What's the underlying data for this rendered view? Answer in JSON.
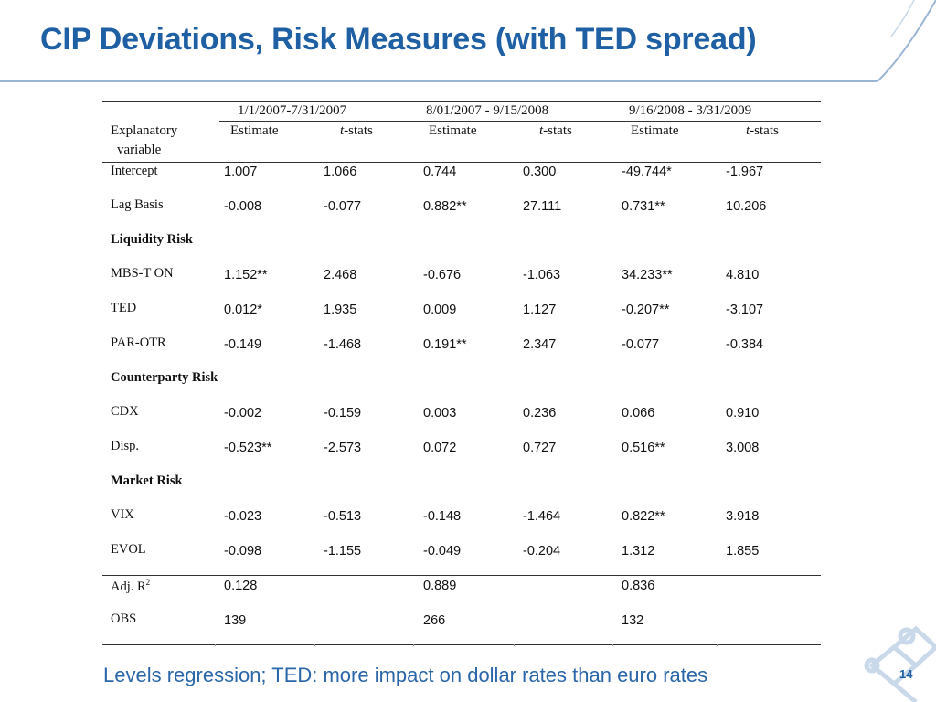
{
  "header": {
    "title": "CIP Deviations, Risk Measures (with TED spread)"
  },
  "table": {
    "periods": [
      "1/1/2007-7/31/2007",
      "8/01/2007 - 9/15/2008",
      "9/16/2008 - 3/31/2009"
    ],
    "col_headers": {
      "explanatory_line1": "Explanatory",
      "explanatory_line2": "variable",
      "estimate": "Estimate",
      "tstats_t": "t",
      "tstats_rest": "-stats"
    },
    "rows": [
      {
        "label": "Intercept",
        "values": [
          "1.007",
          "1.066",
          "0.744",
          "0.300",
          "-49.744*",
          "-1.967"
        ]
      },
      {
        "label": "Lag Basis",
        "values": [
          "-0.008",
          "-0.077",
          "0.882**",
          "27.111",
          "0.731**",
          "10.206"
        ]
      },
      {
        "section": "Liquidity Risk"
      },
      {
        "label": "MBS-T ON",
        "values": [
          "1.152**",
          "2.468",
          "-0.676",
          "-1.063",
          "34.233**",
          "4.810"
        ]
      },
      {
        "label": "TED",
        "values": [
          "0.012*",
          "1.935",
          "0.009",
          "1.127",
          "-0.207**",
          "-3.107"
        ]
      },
      {
        "label": "PAR-OTR",
        "values": [
          "-0.149",
          "-1.468",
          "0.191**",
          "2.347",
          "-0.077",
          "-0.384"
        ]
      },
      {
        "section": "Counterparty Risk"
      },
      {
        "label": "CDX",
        "values": [
          "-0.002",
          "-0.159",
          "0.003",
          "0.236",
          "0.066",
          "0.910"
        ]
      },
      {
        "label": "Disp.",
        "values": [
          "-0.523**",
          "-2.573",
          "0.072",
          "0.727",
          "0.516**",
          "3.008"
        ]
      },
      {
        "section": "Market Risk"
      },
      {
        "label": "VIX",
        "values": [
          "-0.023",
          "-0.513",
          "-0.148",
          "-1.464",
          "0.822**",
          "3.918"
        ]
      },
      {
        "label": "EVOL",
        "values": [
          "-0.098",
          "-1.155",
          "-0.049",
          "-0.204",
          "1.312",
          "1.855"
        ]
      }
    ],
    "stats": {
      "adj_r2_label": "Adj. R",
      "adj_r2_sup": "2",
      "adj_r2": [
        "0.128",
        "0.889",
        "0.836"
      ],
      "obs_label": "OBS",
      "obs": [
        "139",
        "266",
        "132"
      ]
    }
  },
  "footer": {
    "text": "Levels regression; TED:  more impact on dollar rates than euro rates",
    "page_number": "14"
  },
  "colors": {
    "title": "#1f5fa3",
    "footer_text": "#2a66a8",
    "logo": "#c9d9ea"
  },
  "icons": {
    "corner_logo": "lattice-logo-icon",
    "header_swoosh": "header-swoosh-icon"
  }
}
